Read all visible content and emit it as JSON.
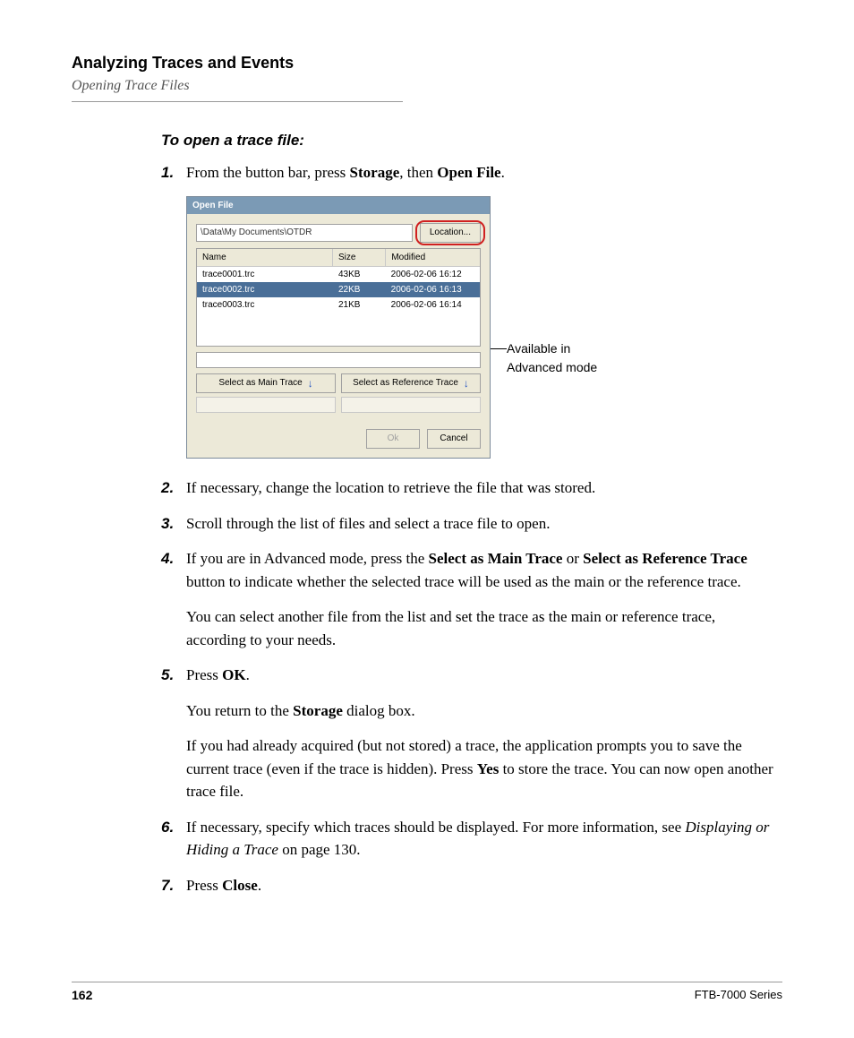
{
  "header": {
    "chapter": "Analyzing Traces and Events",
    "section": "Opening Trace Files"
  },
  "procedure_title": "To open a trace file:",
  "steps": {
    "s1": {
      "num": "1.",
      "pre": "From the button bar, press ",
      "b1": "Storage",
      "mid": ", then ",
      "b2": "Open File",
      "post": "."
    },
    "s2": {
      "num": "2.",
      "text": "If necessary, change the location to retrieve the file that was stored."
    },
    "s3": {
      "num": "3.",
      "text": "Scroll through the list of files and select a trace file to open."
    },
    "s4": {
      "num": "4.",
      "p1_a": "If you are in Advanced mode, press the ",
      "p1_b1": "Select as Main Trace",
      "p1_b": " or ",
      "p1_b2": "Select as Reference Trace",
      "p1_c": " button to indicate whether the selected trace will be used as the main or the reference trace.",
      "p2": "You can select another file from the list and set the trace as the main or reference trace, according to your needs."
    },
    "s5": {
      "num": "5.",
      "p1_a": "Press ",
      "p1_b": "OK",
      "p1_c": ".",
      "p2_a": "You return to the ",
      "p2_b": "Storage",
      "p2_c": " dialog box.",
      "p3_a": "If you had already acquired (but not stored) a trace, the application prompts you to save the current trace (even if the trace is hidden). Press ",
      "p3_b": "Yes",
      "p3_c": " to store the trace. You can now open another trace file."
    },
    "s6": {
      "num": "6.",
      "a": "If necessary, specify which traces should be displayed. For more information, see ",
      "i": "Displaying or Hiding a Trace",
      "b": " on page 130."
    },
    "s7": {
      "num": "7.",
      "a": "Press ",
      "b": "Close",
      "c": "."
    }
  },
  "dialog": {
    "title": "Open File",
    "path": "\\Data\\My Documents\\OTDR",
    "location_btn": "Location...",
    "columns": {
      "name": "Name",
      "size": "Size",
      "modified": "Modified"
    },
    "rows": [
      {
        "name": "trace0001.trc",
        "size": "43KB",
        "modified": "2006-02-06 16:12",
        "selected": false
      },
      {
        "name": "trace0002.trc",
        "size": "22KB",
        "modified": "2006-02-06 16:13",
        "selected": true
      },
      {
        "name": "trace0003.trc",
        "size": "21KB",
        "modified": "2006-02-06 16:14",
        "selected": false
      }
    ],
    "main_btn": "Select as Main Trace",
    "ref_btn": "Select as Reference Trace",
    "ok": "Ok",
    "cancel": "Cancel"
  },
  "callout": {
    "line1": "Available in",
    "line2": "Advanced mode"
  },
  "footer": {
    "page": "162",
    "series": "FTB-7000 Series"
  }
}
